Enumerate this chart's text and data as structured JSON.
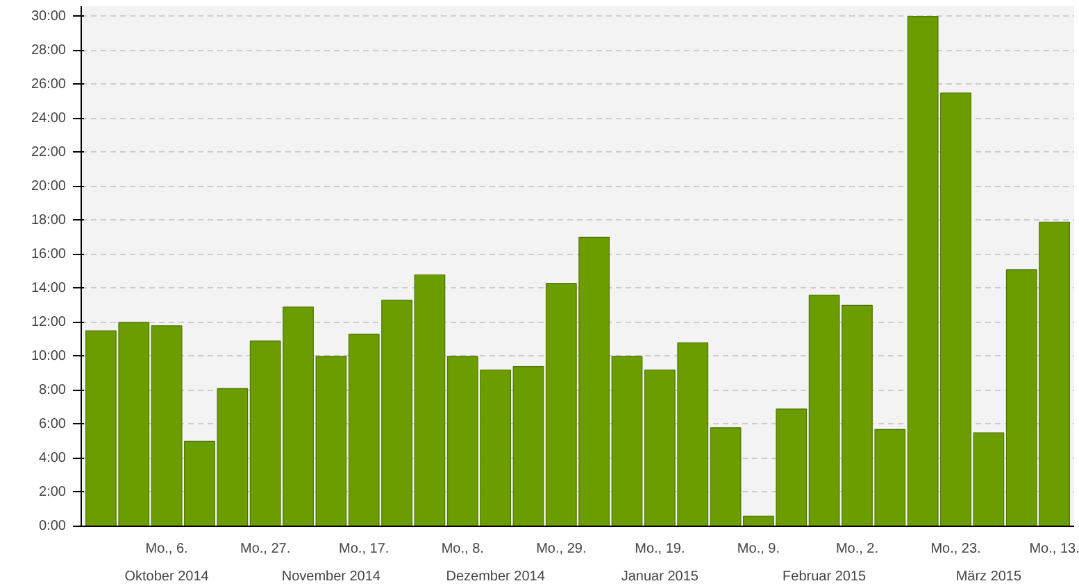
{
  "chart_data": {
    "type": "bar",
    "categories": [
      null,
      null,
      "Mo., 6.",
      null,
      null,
      "Mo., 27.",
      null,
      null,
      "Mo., 17.",
      null,
      null,
      "Mo., 8.",
      null,
      null,
      "Mo., 29.",
      null,
      null,
      "Mo., 19.",
      null,
      null,
      "Mo., 9.",
      null,
      null,
      "Mo., 2.",
      null,
      null,
      "Mo., 23.",
      null,
      null,
      "Mo., 13."
    ],
    "values": [
      11.5,
      12,
      11.8,
      5,
      8.1,
      10.9,
      12.9,
      10,
      11.3,
      13.3,
      14.8,
      10,
      9.2,
      9.4,
      14.3,
      17,
      10,
      9.2,
      10.8,
      5.8,
      0.6,
      6.9,
      13.6,
      13,
      5.7,
      30,
      25.5,
      5.5,
      15.1,
      17.9
    ],
    "color": "#6b9c00",
    "ylim": [
      0,
      30.6
    ],
    "yticks": [
      {
        "value": 0,
        "label": "0:00"
      },
      {
        "value": 2,
        "label": "2:00"
      },
      {
        "value": 4,
        "label": "4:00"
      },
      {
        "value": 6,
        "label": "6:00"
      },
      {
        "value": 8,
        "label": "8:00"
      },
      {
        "value": 10,
        "label": "10:00"
      },
      {
        "value": 12,
        "label": "12:00"
      },
      {
        "value": 14,
        "label": "14:00"
      },
      {
        "value": 16,
        "label": "16:00"
      },
      {
        "value": 18,
        "label": "18:00"
      },
      {
        "value": 20,
        "label": "20:00"
      },
      {
        "value": 22,
        "label": "22:00"
      },
      {
        "value": 24,
        "label": "24:00"
      },
      {
        "value": 26,
        "label": "26:00"
      },
      {
        "value": 28,
        "label": "28:00"
      },
      {
        "value": 30,
        "label": "30:00"
      }
    ],
    "grid": "y",
    "annotations": [
      "Oktober 2014",
      "November 2014",
      "Dezember 2014",
      "Januar 2015",
      "Februar 2015",
      "März 2015"
    ]
  }
}
